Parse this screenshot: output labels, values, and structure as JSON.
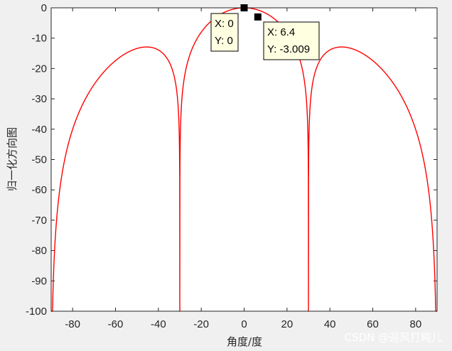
{
  "chart_data": {
    "type": "line",
    "xlabel": "角度/度",
    "ylabel": "归一化方向图",
    "xlim": [
      -90,
      90
    ],
    "ylim": [
      -100,
      0
    ],
    "xticks": [
      -80,
      -60,
      -40,
      -20,
      0,
      20,
      40,
      60,
      80
    ],
    "yticks": [
      0,
      -10,
      -20,
      -30,
      -40,
      -50,
      -60,
      -70,
      -80,
      -90,
      -100
    ],
    "grid": false,
    "line_color": "#ff0000",
    "pattern": {
      "elements": 4,
      "spacing_wavelength": 0.5
    },
    "datatips": [
      {
        "x": 0,
        "y": 0,
        "x_text": "X: 0",
        "y_text": "Y: 0"
      },
      {
        "x": 6.4,
        "y": -3.009,
        "x_text": "X: 6.4",
        "y_text": "Y: -3.009"
      }
    ]
  },
  "watermark": "CSDN @迎风打盹儿"
}
